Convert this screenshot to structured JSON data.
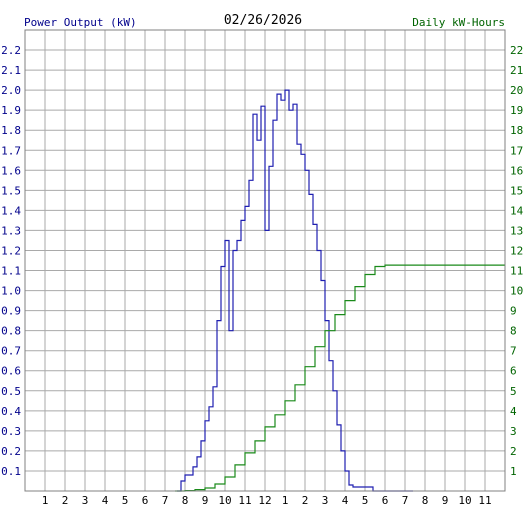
{
  "chart_data": {
    "type": "line",
    "title": "02/26/2026",
    "y_left_label": "Power Output (kW)",
    "y_right_label": "Daily kW-Hours",
    "colors": {
      "power": "#1f1fb0",
      "energy": "#1a8a1a",
      "grid": "#a9a9a9",
      "axis_text_left": "#00008b",
      "axis_text_right": "#006400",
      "background": "#ffffff"
    },
    "x_ticks": [
      "1",
      "2",
      "3",
      "4",
      "5",
      "6",
      "7",
      "8",
      "9",
      "10",
      "11",
      "12",
      "1",
      "2",
      "3",
      "4",
      "5",
      "6",
      "7",
      "8",
      "9",
      "10",
      "11"
    ],
    "x_range": [
      0,
      24
    ],
    "y_left_range": [
      0,
      2.3
    ],
    "y_left_ticks": [
      "0.1",
      "0.2",
      "0.3",
      "0.4",
      "0.5",
      "0.6",
      "0.7",
      "0.8",
      "0.9",
      "1.0",
      "1.1",
      "1.2",
      "1.3",
      "1.4",
      "1.5",
      "1.6",
      "1.7",
      "1.8",
      "1.9",
      "2.0",
      "2.1",
      "2.2"
    ],
    "y_right_range": [
      0,
      23
    ],
    "y_right_ticks": [
      "1",
      "2",
      "3",
      "4",
      "5",
      "6",
      "7",
      "8",
      "9",
      "10",
      "11",
      "12",
      "13",
      "14",
      "15",
      "16",
      "17",
      "18",
      "19",
      "20",
      "21",
      "22"
    ],
    "series": [
      {
        "name": "Power Output (kW)",
        "axis": "left",
        "x": [
          7.6,
          7.8,
          8.0,
          8.2,
          8.4,
          8.6,
          8.8,
          9.0,
          9.2,
          9.4,
          9.6,
          9.8,
          10.0,
          10.2,
          10.4,
          10.6,
          10.8,
          11.0,
          11.2,
          11.4,
          11.6,
          11.8,
          12.0,
          12.2,
          12.4,
          12.6,
          12.8,
          13.0,
          13.2,
          13.4,
          13.6,
          13.8,
          14.0,
          14.2,
          14.4,
          14.6,
          14.8,
          15.0,
          15.2,
          15.4,
          15.6,
          15.8,
          16.0,
          16.2,
          16.4,
          16.6,
          16.8,
          17.0,
          17.2,
          17.4,
          17.6,
          17.8,
          18.0,
          18.2,
          18.4,
          18.6,
          18.8,
          19.0,
          19.2,
          19.4
        ],
        "values": [
          0.0,
          0.05,
          0.08,
          0.08,
          0.12,
          0.17,
          0.25,
          0.35,
          0.42,
          0.52,
          0.85,
          1.12,
          1.25,
          0.8,
          1.2,
          1.25,
          1.35,
          1.42,
          1.55,
          1.88,
          1.75,
          1.92,
          1.3,
          1.62,
          1.85,
          1.98,
          1.95,
          2.0,
          1.9,
          1.93,
          1.73,
          1.68,
          1.6,
          1.48,
          1.33,
          1.2,
          1.05,
          0.85,
          0.65,
          0.5,
          0.33,
          0.2,
          0.1,
          0.03,
          0.02,
          0.02,
          0.02,
          0.02,
          0.02,
          0.0,
          0.0,
          0.0,
          0.0,
          0.0,
          0.0,
          0.0,
          0.0,
          0.0,
          0.0,
          0.0
        ]
      },
      {
        "name": "Daily kW-Hours",
        "axis": "right",
        "x": [
          7.5,
          8.0,
          8.5,
          9.0,
          9.5,
          10.0,
          10.5,
          11.0,
          11.5,
          12.0,
          12.5,
          13.0,
          13.5,
          14.0,
          14.5,
          15.0,
          15.5,
          16.0,
          16.5,
          17.0,
          17.5,
          18.0,
          18.5,
          19.0,
          19.5,
          20.0,
          21.0,
          22.0,
          23.0,
          24.0
        ],
        "values": [
          0.0,
          0.02,
          0.07,
          0.15,
          0.35,
          0.7,
          1.3,
          1.9,
          2.5,
          3.2,
          3.8,
          4.5,
          5.3,
          6.2,
          7.2,
          8.0,
          8.8,
          9.5,
          10.2,
          10.8,
          11.2,
          11.27,
          11.27,
          11.27,
          11.27,
          11.27,
          11.27,
          11.27,
          11.27,
          11.27
        ]
      }
    ]
  }
}
